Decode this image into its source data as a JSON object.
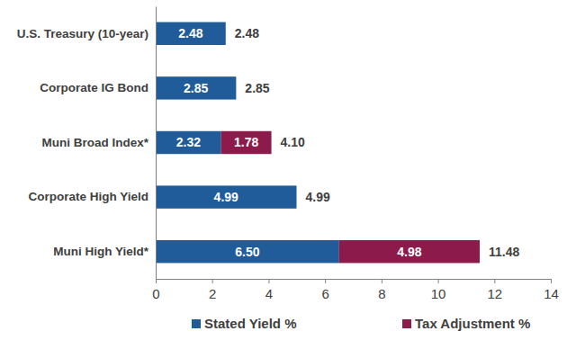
{
  "chart_data": {
    "type": "bar",
    "orientation": "horizontal",
    "stacked": true,
    "data_labels": true,
    "grid": false,
    "legend": "bottom",
    "categories": [
      "U.S. Treasury (10-year)",
      "Corporate IG Bond",
      "Muni Broad Index*",
      "Corporate High Yield",
      "Muni High Yield*"
    ],
    "series": [
      {
        "name": "Stated Yield %",
        "color": "#1f5c99",
        "values": [
          2.48,
          2.85,
          2.32,
          4.99,
          6.5
        ],
        "value_labels": [
          "2.48",
          "2.85",
          "2.32",
          "4.99",
          "6.50"
        ]
      },
      {
        "name": "Tax Adjustment %",
        "color": "#8c1b4b",
        "values": [
          null,
          null,
          1.78,
          null,
          4.98
        ],
        "value_labels": [
          null,
          null,
          "1.78",
          null,
          "4.98"
        ]
      }
    ],
    "totals": [
      2.48,
      2.85,
      4.1,
      4.99,
      11.48
    ],
    "total_labels": [
      "2.48",
      "2.85",
      "4.10",
      "4.99",
      "11.48"
    ],
    "xlim": [
      0,
      14
    ],
    "xticks": [
      0,
      2,
      4,
      6,
      8,
      10,
      12,
      14
    ]
  }
}
